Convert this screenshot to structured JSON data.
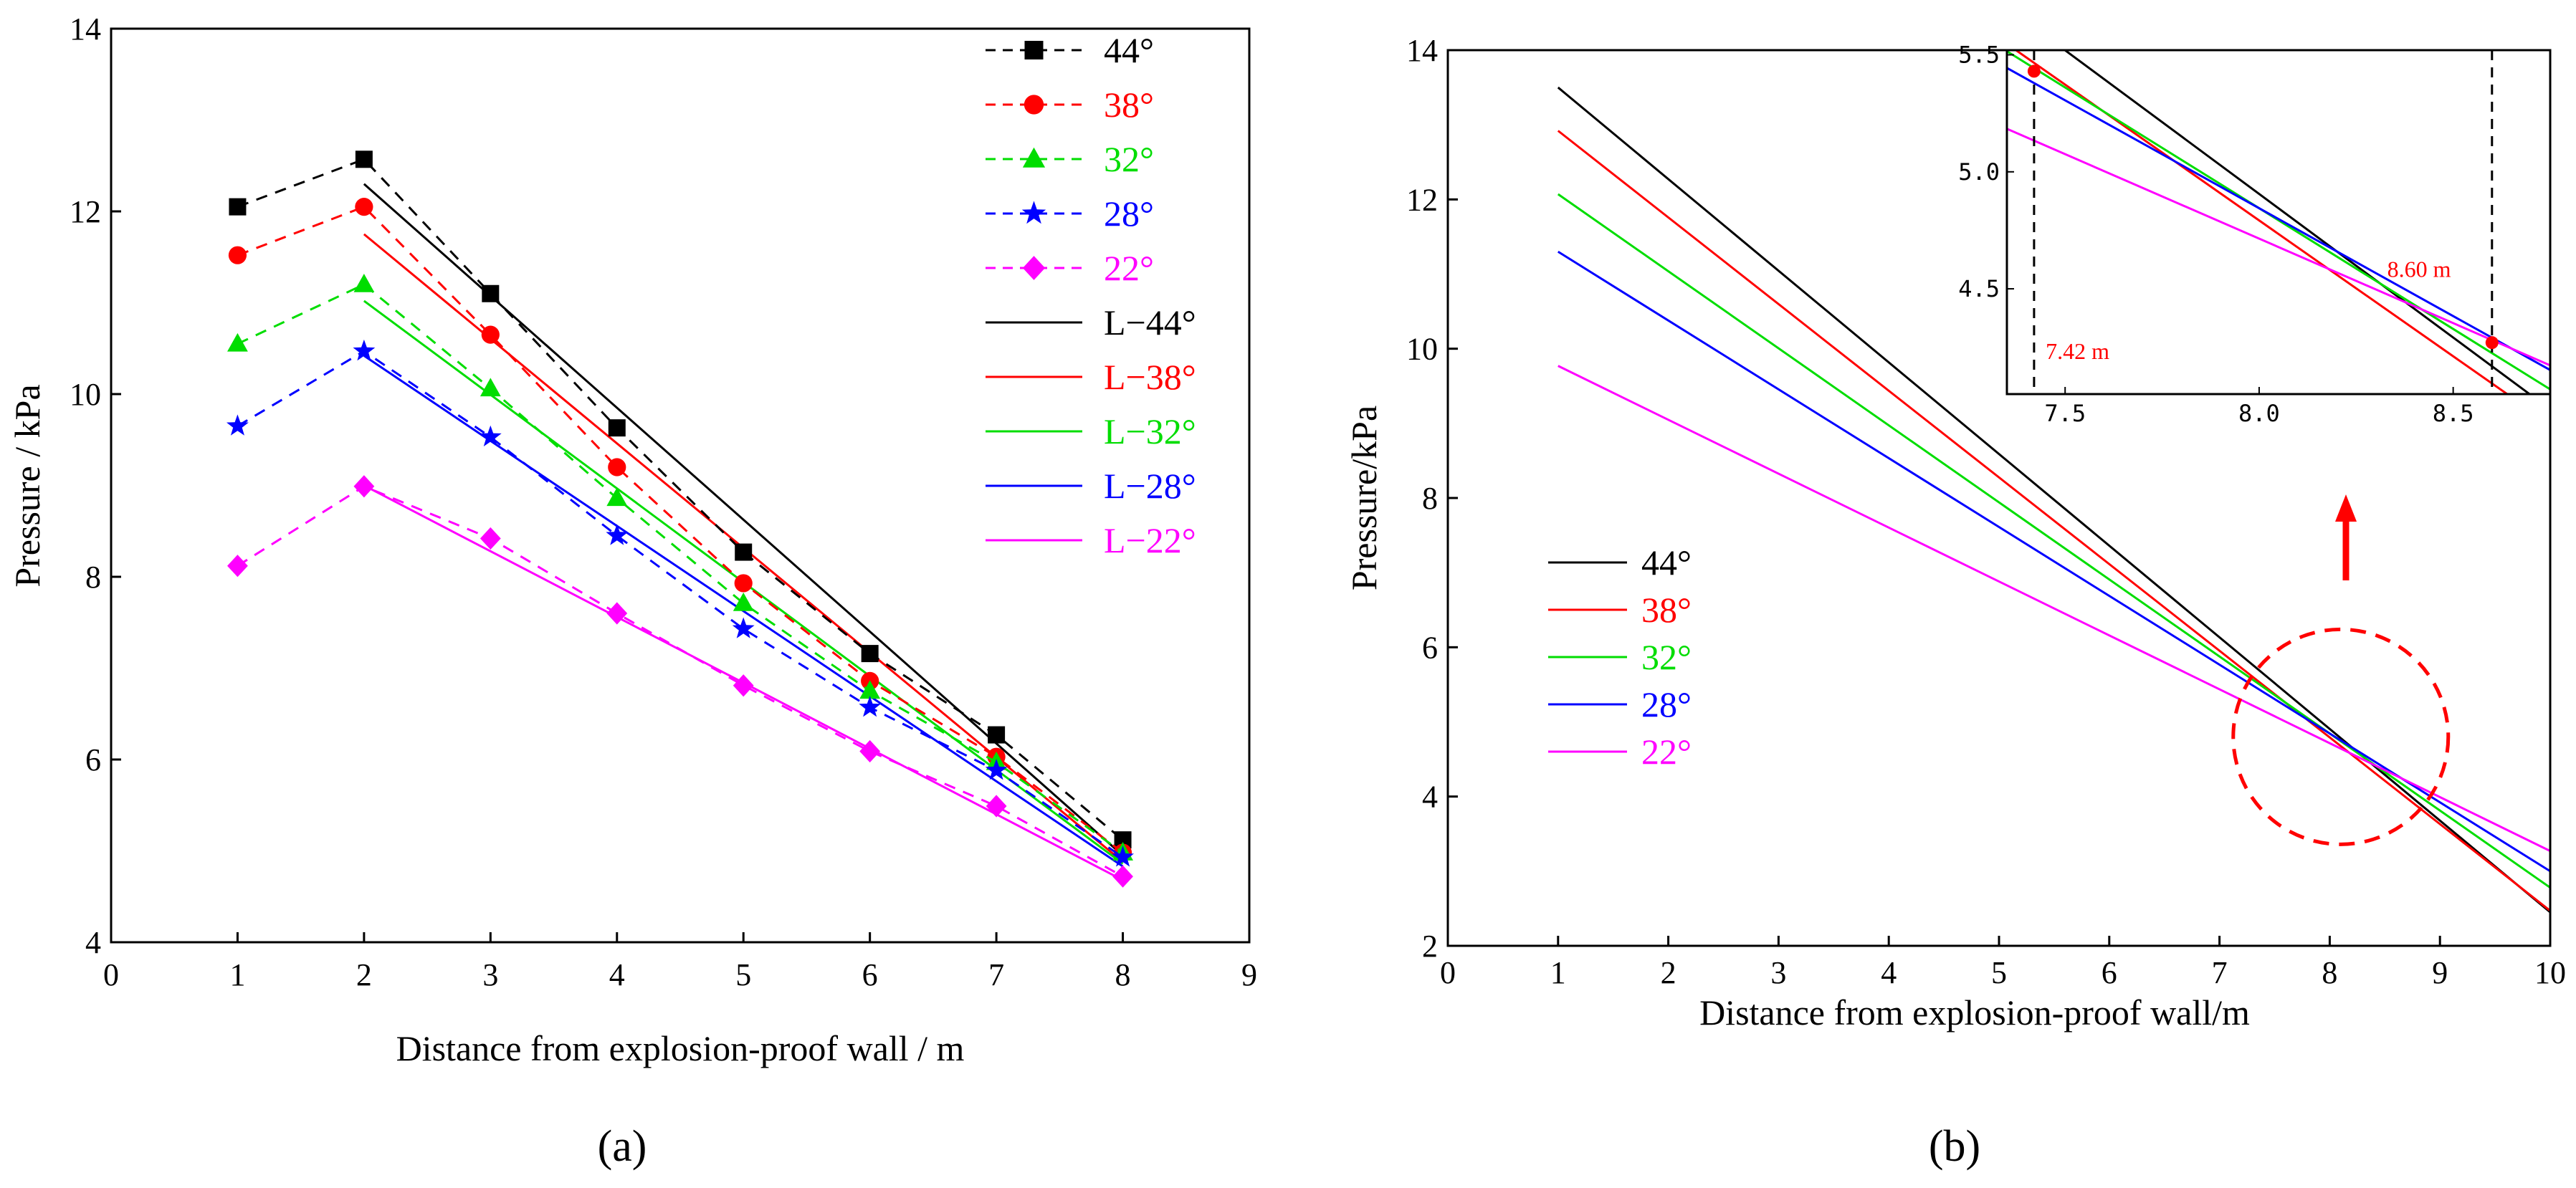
{
  "figure": {
    "label_a": "(a)",
    "label_b": "(b)"
  },
  "colors": {
    "44": "#000000",
    "38": "#ff0000",
    "32": "#00dd00",
    "28": "#0000ff",
    "22": "#ff00ff"
  },
  "chart_data": [
    {
      "id": "a",
      "type": "line",
      "title": "",
      "xlabel": "Distance from explosion-proof wall / m",
      "ylabel": "Pressure / kPa",
      "xlim": [
        0,
        9
      ],
      "ylim": [
        4,
        14
      ],
      "xticks": [
        0,
        1,
        2,
        3,
        4,
        5,
        6,
        7,
        8,
        9
      ],
      "yticks": [
        4,
        6,
        8,
        10,
        12,
        14
      ],
      "legend_position": "top-right",
      "x": [
        1,
        2,
        3,
        4,
        5,
        6,
        7,
        8
      ],
      "series": [
        {
          "key": "44",
          "name": "44°",
          "marker": "square",
          "values": [
            12.05,
            12.57,
            11.1,
            9.63,
            8.27,
            7.16,
            6.27,
            5.12
          ]
        },
        {
          "key": "38",
          "name": "38°",
          "marker": "circle",
          "values": [
            11.52,
            12.05,
            10.65,
            9.2,
            7.93,
            6.86,
            6.03,
            4.98
          ]
        },
        {
          "key": "32",
          "name": "32°",
          "marker": "triangle",
          "values": [
            10.55,
            11.2,
            10.06,
            8.86,
            7.71,
            6.75,
            5.97,
            4.98
          ]
        },
        {
          "key": "28",
          "name": "28°",
          "marker": "star",
          "values": [
            9.65,
            10.47,
            9.53,
            8.45,
            7.43,
            6.57,
            5.88,
            4.93
          ]
        },
        {
          "key": "22",
          "name": "22°",
          "marker": "diamond",
          "values": [
            8.12,
            8.99,
            8.42,
            7.6,
            6.81,
            6.09,
            5.49,
            4.72
          ]
        }
      ],
      "fit_lines": [
        {
          "key": "44",
          "name": "L−44°",
          "x": [
            2,
            8
          ],
          "values": [
            12.3,
            4.95
          ]
        },
        {
          "key": "38",
          "name": "L−38°",
          "x": [
            2,
            8
          ],
          "values": [
            11.75,
            4.88
          ]
        },
        {
          "key": "32",
          "name": "L−32°",
          "x": [
            2,
            8
          ],
          "values": [
            11.02,
            4.86
          ]
        },
        {
          "key": "28",
          "name": "L−28°",
          "x": [
            2,
            8
          ],
          "values": [
            10.42,
            4.83
          ]
        },
        {
          "key": "22",
          "name": "L−22°",
          "x": [
            2,
            8
          ],
          "values": [
            9.0,
            4.68
          ]
        }
      ]
    },
    {
      "id": "b",
      "type": "line",
      "title": "",
      "xlabel": "Distance from explosion-proof wall/m",
      "ylabel": "Pressure/kPa",
      "xlim": [
        0,
        10
      ],
      "ylim": [
        2,
        14
      ],
      "xticks": [
        0,
        1,
        2,
        3,
        4,
        5,
        6,
        7,
        8,
        9,
        10
      ],
      "yticks": [
        2,
        4,
        6,
        8,
        10,
        12,
        14
      ],
      "legend_position": "bottom-left",
      "series": [
        {
          "key": "44",
          "name": "44°",
          "x": [
            1,
            10
          ],
          "values": [
            13.5,
            2.45
          ]
        },
        {
          "key": "38",
          "name": "38°",
          "x": [
            1,
            10
          ],
          "values": [
            12.92,
            2.47
          ]
        },
        {
          "key": "32",
          "name": "32°",
          "x": [
            1,
            10
          ],
          "values": [
            12.07,
            2.78
          ]
        },
        {
          "key": "28",
          "name": "28°",
          "x": [
            1,
            10
          ],
          "values": [
            11.3,
            3.0
          ]
        },
        {
          "key": "22",
          "name": "22°",
          "x": [
            1,
            10
          ],
          "values": [
            9.77,
            3.27
          ]
        }
      ],
      "highlight": {
        "center": [
          8.1,
          4.8
        ],
        "note": "dashed circle marks the crossing region; arrow points to zoom inset"
      },
      "inset": {
        "xlim": [
          7.35,
          8.75
        ],
        "ylim": [
          4.05,
          5.52
        ],
        "xticks": [
          7.5,
          8.0,
          8.5
        ],
        "yticks": [
          4.5,
          5.0,
          5.5
        ],
        "xtick_labels": [
          "7.5",
          "8.0",
          "8.5"
        ],
        "ytick_labels": [
          "4.5",
          "5.0",
          "5.5"
        ],
        "vlines": [
          7.42,
          8.6
        ],
        "markers": [
          {
            "x": 7.42,
            "y": 5.43
          },
          {
            "x": 8.6,
            "y": 4.27
          }
        ],
        "annotations": [
          {
            "text": "7.42 m",
            "x": 7.45,
            "y": 4.2
          },
          {
            "text": "8.60 m",
            "x": 8.33,
            "y": 4.55
          }
        ]
      }
    }
  ]
}
